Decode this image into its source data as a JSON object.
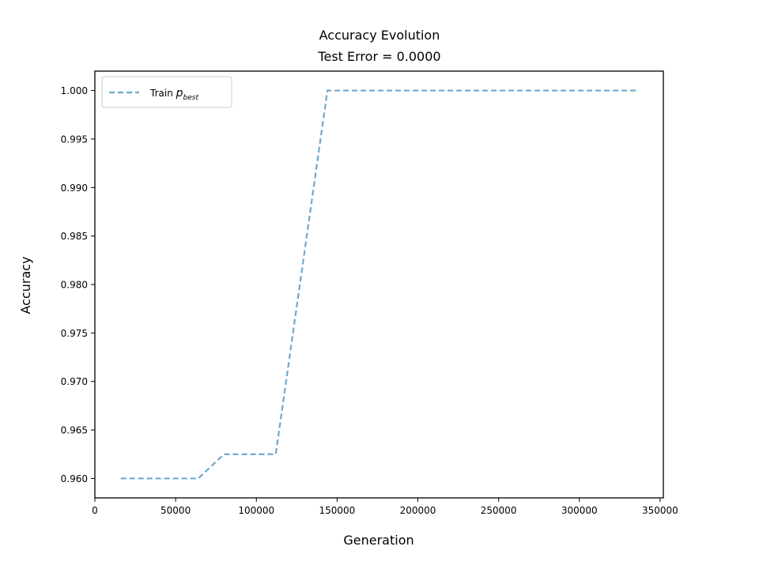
{
  "chart_data": {
    "type": "line",
    "title": "Accuracy Evolution",
    "subtitle": "Test Error = 0.0000",
    "xlabel": "Generation",
    "ylabel": "Accuracy",
    "xlim": [
      0,
      352000
    ],
    "ylim": [
      0.958,
      1.002
    ],
    "x_ticks": [
      0,
      50000,
      100000,
      150000,
      200000,
      250000,
      300000,
      350000
    ],
    "x_tick_labels": [
      "0",
      "50000",
      "100000",
      "150000",
      "200000",
      "250000",
      "300000",
      "350000"
    ],
    "y_ticks": [
      0.96,
      0.965,
      0.97,
      0.975,
      0.98,
      0.985,
      0.99,
      0.995,
      1.0
    ],
    "y_tick_labels": [
      "0.960",
      "0.965",
      "0.970",
      "0.975",
      "0.980",
      "0.985",
      "0.990",
      "0.995",
      "1.000"
    ],
    "grid": false,
    "legend_position": "top-left",
    "series": [
      {
        "name": "Train p_best",
        "legend_text": "Train",
        "legend_symbol": "p",
        "legend_subscript": "best",
        "color": "#6fa8cc",
        "style": "dashed",
        "x": [
          16000,
          32000,
          48000,
          64000,
          80000,
          96000,
          112000,
          128000,
          144000,
          160000,
          176000,
          192000,
          208000,
          224000,
          240000,
          256000,
          272000,
          288000,
          304000,
          320000,
          336000
        ],
        "y": [
          0.96,
          0.96,
          0.96,
          0.96,
          0.9625,
          0.9625,
          0.9625,
          0.98125,
          1.0,
          1.0,
          1.0,
          1.0,
          1.0,
          1.0,
          1.0,
          1.0,
          1.0,
          1.0,
          1.0,
          1.0,
          1.0
        ]
      }
    ]
  }
}
